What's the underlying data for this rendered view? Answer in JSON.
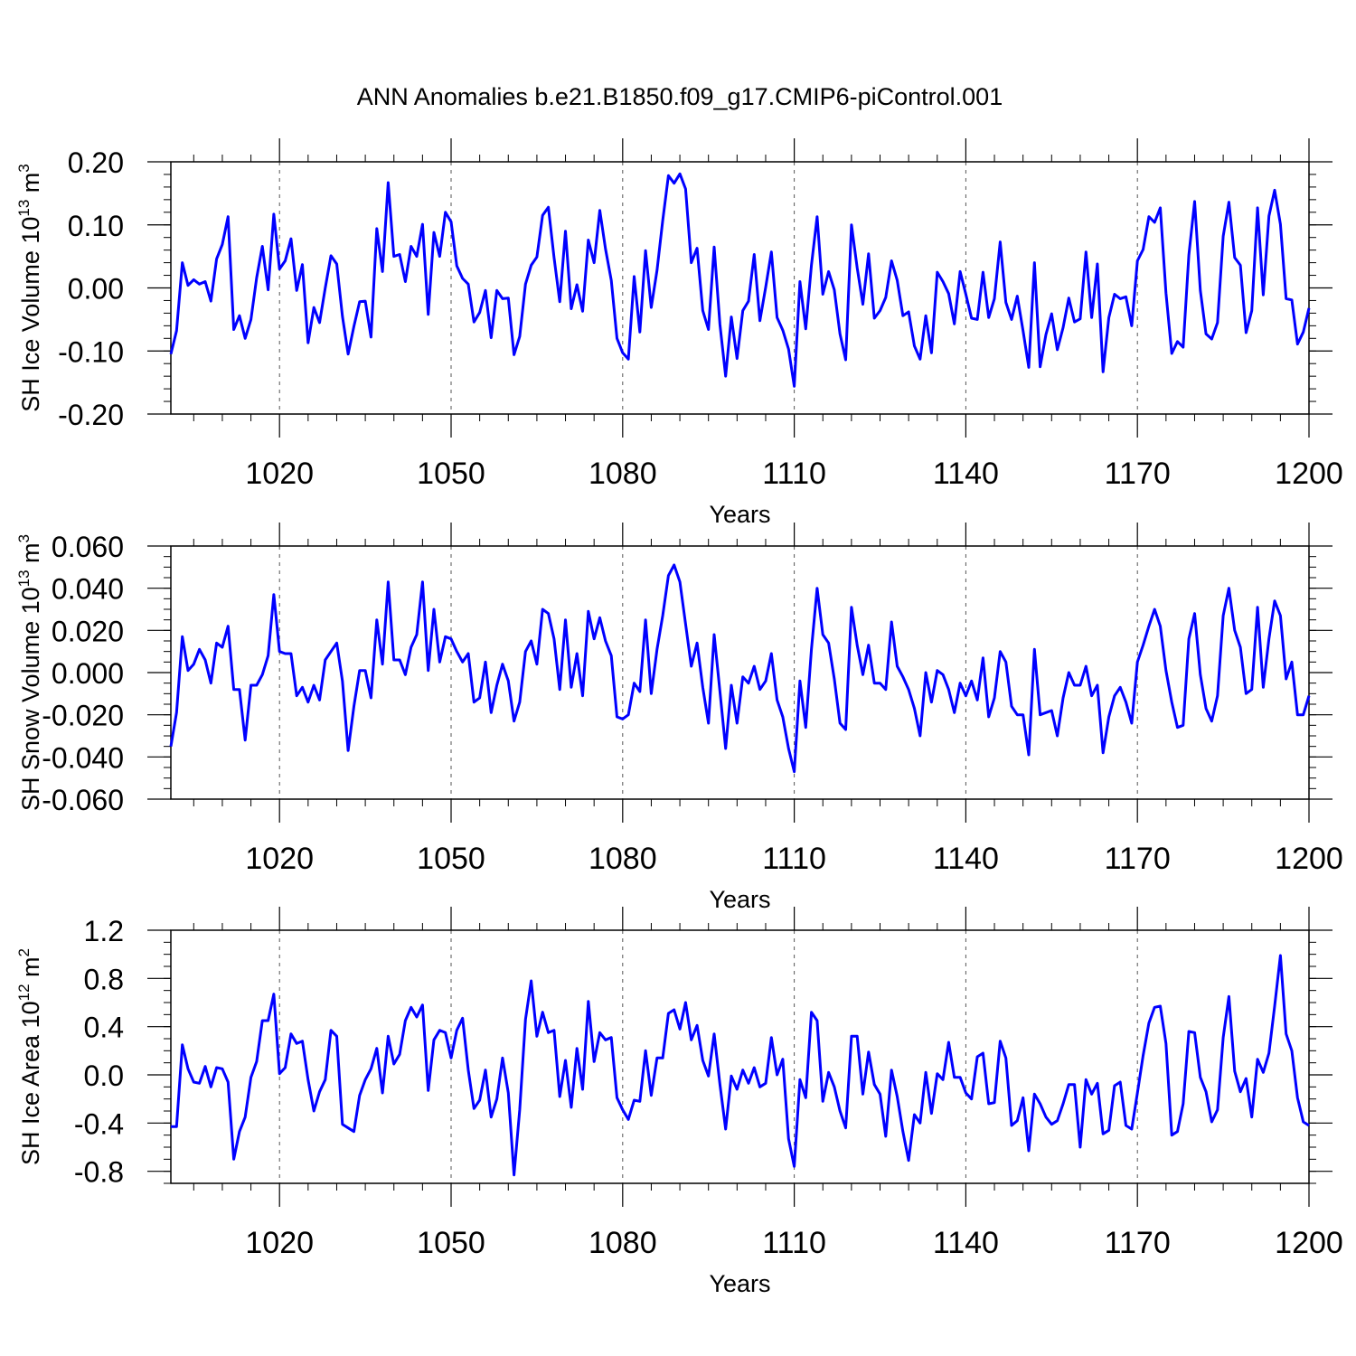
{
  "title": "ANN Anomalies b.e21.B1850.f09_g17.CMIP6-piControl.001",
  "line_color": "#0000ff",
  "chart_data": [
    {
      "type": "line",
      "ylabel_main": "SH Ice Volume 10",
      "ylabel_sup": "13",
      "ylabel_unit": " m",
      "ylabel_unit_sup": "3",
      "xlabel": "Years",
      "xlim": [
        1001,
        1200
      ],
      "ylim": [
        -0.2,
        0.2
      ],
      "x_ticks": [
        1020,
        1050,
        1080,
        1110,
        1140,
        1170,
        1200
      ],
      "x_tick_labels": [
        "1020",
        "1050",
        "1080",
        "1110",
        "1140",
        "1170",
        "1200"
      ],
      "y_ticks": [
        -0.2,
        -0.1,
        0.0,
        0.1,
        0.2
      ],
      "y_tick_labels": [
        "-0.20",
        "-0.10",
        "0.00",
        "0.10",
        "0.20"
      ],
      "y_minor_step": 0.02,
      "grid_x": [
        1020,
        1050,
        1080,
        1110,
        1140,
        1170
      ],
      "x_start": 1001,
      "values": [
        -0.105,
        -0.068,
        0.04,
        0.004,
        0.013,
        0.006,
        0.01,
        -0.021,
        0.046,
        0.069,
        0.113,
        -0.066,
        -0.044,
        -0.08,
        -0.05,
        0.016,
        0.066,
        -0.003,
        0.117,
        0.03,
        0.043,
        0.078,
        -0.004,
        0.037,
        -0.087,
        -0.031,
        -0.055,
        0.0,
        0.051,
        0.038,
        -0.045,
        -0.105,
        -0.061,
        -0.022,
        -0.021,
        -0.078,
        0.094,
        0.026,
        0.167,
        0.05,
        0.053,
        0.01,
        0.066,
        0.05,
        0.101,
        -0.042,
        0.088,
        0.05,
        0.12,
        0.105,
        0.035,
        0.015,
        0.006,
        -0.054,
        -0.039,
        -0.004,
        -0.079,
        -0.004,
        -0.017,
        -0.016,
        -0.106,
        -0.077,
        0.006,
        0.036,
        0.049,
        0.115,
        0.128,
        0.048,
        -0.022,
        0.09,
        -0.033,
        0.005,
        -0.037,
        0.076,
        0.04,
        0.123,
        0.062,
        0.012,
        -0.08,
        -0.103,
        -0.113,
        0.018,
        -0.07,
        0.059,
        -0.031,
        0.028,
        0.107,
        0.178,
        0.166,
        0.181,
        0.157,
        0.04,
        0.063,
        -0.036,
        -0.066,
        0.065,
        -0.058,
        -0.14,
        -0.046,
        -0.112,
        -0.036,
        -0.021,
        0.053,
        -0.052,
        0.001,
        0.057,
        -0.047,
        -0.067,
        -0.097,
        -0.156,
        0.01,
        -0.065,
        0.036,
        0.113,
        -0.01,
        0.026,
        -0.003,
        -0.073,
        -0.114,
        0.1,
        0.032,
        -0.026,
        0.054,
        -0.048,
        -0.036,
        -0.015,
        0.043,
        0.012,
        -0.044,
        -0.038,
        -0.092,
        -0.113,
        -0.044,
        -0.103,
        0.025,
        0.01,
        -0.009,
        -0.057,
        0.026,
        -0.01,
        -0.048,
        -0.05,
        0.025,
        -0.047,
        -0.017,
        0.073,
        -0.023,
        -0.05,
        -0.013,
        -0.068,
        -0.126,
        0.04,
        -0.125,
        -0.074,
        -0.041,
        -0.098,
        -0.063,
        -0.016,
        -0.054,
        -0.049,
        0.057,
        -0.047,
        0.038,
        -0.133,
        -0.047,
        -0.01,
        -0.017,
        -0.014,
        -0.06,
        0.043,
        0.061,
        0.113,
        0.104,
        0.127,
        -0.008,
        -0.104,
        -0.085,
        -0.094,
        0.052,
        0.137,
        -0.004,
        -0.073,
        -0.081,
        -0.055,
        0.082,
        0.136,
        0.048,
        0.036,
        -0.071,
        -0.036,
        0.127,
        -0.011,
        0.114,
        0.155,
        0.101,
        -0.017,
        -0.019,
        -0.089,
        -0.07,
        -0.032
      ]
    },
    {
      "type": "line",
      "ylabel_main": "SH Snow Volume 10",
      "ylabel_sup": "13",
      "ylabel_unit": " m",
      "ylabel_unit_sup": "3",
      "xlabel": "Years",
      "xlim": [
        1001,
        1200
      ],
      "ylim": [
        -0.06,
        0.06
      ],
      "x_ticks": [
        1020,
        1050,
        1080,
        1110,
        1140,
        1170,
        1200
      ],
      "x_tick_labels": [
        "1020",
        "1050",
        "1080",
        "1110",
        "1140",
        "1170",
        "1200"
      ],
      "y_ticks": [
        -0.06,
        -0.04,
        -0.02,
        0.0,
        0.02,
        0.04,
        0.06
      ],
      "y_tick_labels": [
        "-0.060",
        "-0.040",
        "-0.020",
        "0.000",
        "0.020",
        "0.040",
        "0.060"
      ],
      "y_minor_step": 0.005,
      "grid_x": [
        1020,
        1050,
        1080,
        1110,
        1140,
        1170
      ],
      "x_start": 1001,
      "values": [
        -0.035,
        -0.019,
        0.017,
        0.001,
        0.004,
        0.011,
        0.006,
        -0.005,
        0.014,
        0.012,
        0.022,
        -0.008,
        -0.008,
        -0.032,
        -0.006,
        -0.006,
        -0.001,
        0.008,
        0.037,
        0.01,
        0.009,
        0.009,
        -0.011,
        -0.007,
        -0.014,
        -0.006,
        -0.013,
        0.006,
        0.01,
        0.014,
        -0.004,
        -0.037,
        -0.016,
        0.001,
        0.001,
        -0.012,
        0.025,
        0.004,
        0.043,
        0.006,
        0.006,
        -0.001,
        0.012,
        0.018,
        0.043,
        0.001,
        0.03,
        0.005,
        0.017,
        0.016,
        0.01,
        0.005,
        0.009,
        -0.014,
        -0.012,
        0.005,
        -0.019,
        -0.006,
        0.004,
        -0.004,
        -0.023,
        -0.014,
        0.01,
        0.015,
        0.004,
        0.03,
        0.028,
        0.016,
        -0.008,
        0.025,
        -0.007,
        0.009,
        -0.011,
        0.029,
        0.016,
        0.026,
        0.015,
        0.008,
        -0.021,
        -0.022,
        -0.02,
        -0.005,
        -0.009,
        0.025,
        -0.01,
        0.011,
        0.027,
        0.046,
        0.051,
        0.043,
        0.023,
        0.003,
        0.014,
        -0.007,
        -0.024,
        0.018,
        -0.009,
        -0.036,
        -0.006,
        -0.024,
        -0.002,
        -0.005,
        0.003,
        -0.008,
        -0.004,
        0.009,
        -0.013,
        -0.021,
        -0.036,
        -0.047,
        -0.004,
        -0.026,
        0.011,
        0.04,
        0.018,
        0.014,
        -0.003,
        -0.024,
        -0.027,
        0.031,
        0.013,
        -0.001,
        0.013,
        -0.005,
        -0.005,
        -0.008,
        0.024,
        0.003,
        -0.002,
        -0.008,
        -0.017,
        -0.03,
        0.0,
        -0.014,
        0.001,
        -0.001,
        -0.008,
        -0.019,
        -0.005,
        -0.011,
        -0.004,
        -0.013,
        0.007,
        -0.021,
        -0.012,
        0.01,
        0.005,
        -0.016,
        -0.02,
        -0.02,
        -0.039,
        0.011,
        -0.02,
        -0.019,
        -0.018,
        -0.03,
        -0.012,
        0.0,
        -0.006,
        -0.006,
        0.003,
        -0.011,
        -0.006,
        -0.038,
        -0.021,
        -0.011,
        -0.007,
        -0.014,
        -0.024,
        0.005,
        0.013,
        0.022,
        0.03,
        0.022,
        0.001,
        -0.014,
        -0.026,
        -0.025,
        0.016,
        0.028,
        -0.001,
        -0.017,
        -0.023,
        -0.011,
        0.027,
        0.04,
        0.02,
        0.012,
        -0.01,
        -0.008,
        0.031,
        -0.007,
        0.016,
        0.034,
        0.027,
        -0.003,
        0.005,
        -0.02,
        -0.02,
        -0.011
      ]
    },
    {
      "type": "line",
      "ylabel_main": "SH Ice Area 10",
      "ylabel_sup": "12",
      "ylabel_unit": " m",
      "ylabel_unit_sup": "2",
      "xlabel": "Years",
      "xlim": [
        1001,
        1200
      ],
      "ylim": [
        -0.9,
        1.2
      ],
      "x_ticks": [
        1020,
        1050,
        1080,
        1110,
        1140,
        1170,
        1200
      ],
      "x_tick_labels": [
        "1020",
        "1050",
        "1080",
        "1110",
        "1140",
        "1170",
        "1200"
      ],
      "y_ticks": [
        -0.8,
        -0.4,
        0.0,
        0.4,
        0.8,
        1.2
      ],
      "y_tick_labels": [
        "-0.8",
        "-0.4",
        "0.0",
        "0.4",
        "0.8",
        "1.2"
      ],
      "y_minor_step": 0.1,
      "grid_x": [
        1020,
        1050,
        1080,
        1110,
        1140,
        1170
      ],
      "x_start": 1001,
      "values": [
        -0.43,
        -0.43,
        0.25,
        0.05,
        -0.06,
        -0.07,
        0.07,
        -0.1,
        0.06,
        0.05,
        -0.06,
        -0.7,
        -0.47,
        -0.35,
        -0.02,
        0.11,
        0.45,
        0.45,
        0.67,
        0.01,
        0.06,
        0.34,
        0.26,
        0.28,
        -0.04,
        -0.3,
        -0.14,
        -0.04,
        0.37,
        0.32,
        -0.41,
        -0.44,
        -0.47,
        -0.17,
        -0.04,
        0.05,
        0.22,
        -0.15,
        0.32,
        0.09,
        0.17,
        0.45,
        0.56,
        0.48,
        0.58,
        -0.13,
        0.29,
        0.37,
        0.35,
        0.14,
        0.37,
        0.47,
        0.04,
        -0.28,
        -0.21,
        0.04,
        -0.35,
        -0.2,
        0.14,
        -0.15,
        -0.83,
        -0.29,
        0.46,
        0.78,
        0.32,
        0.52,
        0.35,
        0.37,
        -0.18,
        0.12,
        -0.27,
        0.22,
        -0.12,
        0.61,
        0.11,
        0.35,
        0.29,
        0.31,
        -0.19,
        -0.29,
        -0.37,
        -0.21,
        -0.22,
        0.2,
        -0.17,
        0.14,
        0.14,
        0.51,
        0.54,
        0.38,
        0.6,
        0.29,
        0.41,
        0.12,
        -0.01,
        0.34,
        -0.08,
        -0.45,
        -0.01,
        -0.12,
        0.04,
        -0.07,
        0.06,
        -0.1,
        -0.07,
        0.31,
        0.0,
        0.13,
        -0.53,
        -0.76,
        -0.04,
        -0.19,
        0.52,
        0.45,
        -0.22,
        0.02,
        -0.1,
        -0.3,
        -0.44,
        0.32,
        0.32,
        -0.16,
        0.19,
        -0.08,
        -0.16,
        -0.51,
        0.04,
        -0.18,
        -0.47,
        -0.71,
        -0.33,
        -0.4,
        0.02,
        -0.32,
        0.01,
        -0.04,
        0.27,
        -0.02,
        -0.02,
        -0.15,
        -0.2,
        0.15,
        0.18,
        -0.24,
        -0.23,
        0.28,
        0.14,
        -0.42,
        -0.38,
        -0.19,
        -0.63,
        -0.16,
        -0.24,
        -0.35,
        -0.41,
        -0.38,
        -0.24,
        -0.08,
        -0.08,
        -0.6,
        -0.04,
        -0.16,
        -0.07,
        -0.49,
        -0.46,
        -0.09,
        -0.06,
        -0.42,
        -0.45,
        -0.15,
        0.16,
        0.43,
        0.56,
        0.57,
        0.26,
        -0.5,
        -0.47,
        -0.24,
        0.36,
        0.35,
        -0.02,
        -0.14,
        -0.39,
        -0.29,
        0.31,
        0.65,
        0.03,
        -0.14,
        -0.03,
        -0.35,
        0.13,
        0.02,
        0.18,
        0.57,
        0.99,
        0.34,
        0.2,
        -0.19,
        -0.39,
        -0.42
      ]
    }
  ]
}
